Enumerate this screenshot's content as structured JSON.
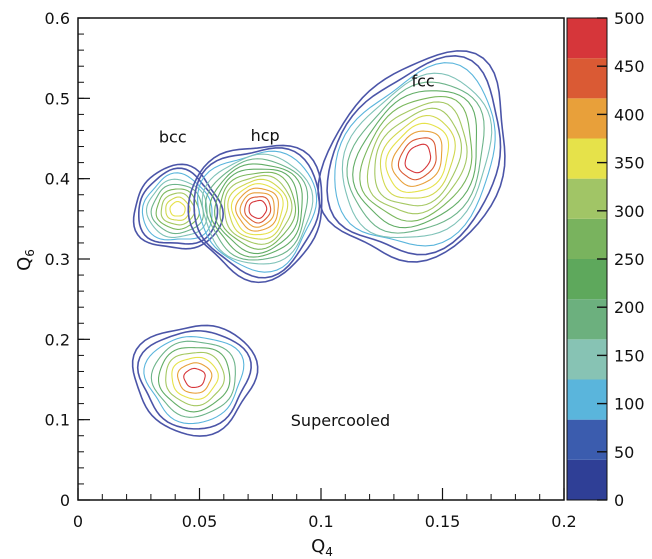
{
  "chart_data": {
    "type": "contour",
    "title": "",
    "xlabel": "Q",
    "xlabel_sub": "4",
    "ylabel": "Q",
    "ylabel_sub": "6",
    "xlim": [
      0,
      0.2
    ],
    "ylim": [
      0,
      0.6
    ],
    "x_ticks": [
      0,
      0.05,
      0.1,
      0.15,
      0.2
    ],
    "x_tick_labels": [
      "0",
      "0.05",
      "0.1",
      "0.15",
      "0.2"
    ],
    "y_ticks": [
      0,
      0.1,
      0.2,
      0.3,
      0.4,
      0.5,
      0.6
    ],
    "y_tick_labels": [
      "0",
      "0.1",
      "0.2",
      "0.3",
      "0.4",
      "0.5",
      "0.6"
    ],
    "grid": false,
    "annotations": [
      {
        "text": "bcc",
        "x": 0.039,
        "y": 0.445
      },
      {
        "text": "hcp",
        "x": 0.077,
        "y": 0.447
      },
      {
        "text": "fcc",
        "x": 0.142,
        "y": 0.515
      },
      {
        "text": "Supercooled",
        "x": 0.108,
        "y": 0.092
      }
    ],
    "clusters": [
      {
        "label": "bcc",
        "cx": 0.041,
        "cy": 0.362,
        "rx": 0.018,
        "ry": 0.052,
        "angle": 0,
        "levels": 9,
        "peak_color": "#e6e24a"
      },
      {
        "label": "hcp",
        "cx": 0.074,
        "cy": 0.362,
        "rx": 0.028,
        "ry": 0.082,
        "angle": 52,
        "levels": 15,
        "peak_color": "#d6363a"
      },
      {
        "label": "fcc",
        "cx": 0.14,
        "cy": 0.425,
        "rx": 0.045,
        "ry": 0.105,
        "angle": 57,
        "levels": 14,
        "peak_color": "#d6363a"
      },
      {
        "label": "Supercooled",
        "cx": 0.048,
        "cy": 0.152,
        "rx": 0.025,
        "ry": 0.068,
        "angle": 5,
        "levels": 9,
        "peak_color": "#8fc064"
      }
    ],
    "colorbar": {
      "min": 0,
      "max": 500,
      "ticks": [
        0,
        50,
        100,
        150,
        200,
        250,
        300,
        350,
        400,
        450,
        500
      ],
      "tick_labels": [
        "0",
        "50",
        "100",
        "150",
        "200",
        "250",
        "300",
        "350",
        "400",
        "450",
        "500"
      ],
      "colors": [
        "#2f3f96",
        "#3b5cae",
        "#5ab5dc",
        "#87c3b4",
        "#6cb07e",
        "#5ea85c",
        "#79b35e",
        "#a1c566",
        "#e6e24a",
        "#e8a03a",
        "#da5a34",
        "#d6363a"
      ]
    }
  }
}
